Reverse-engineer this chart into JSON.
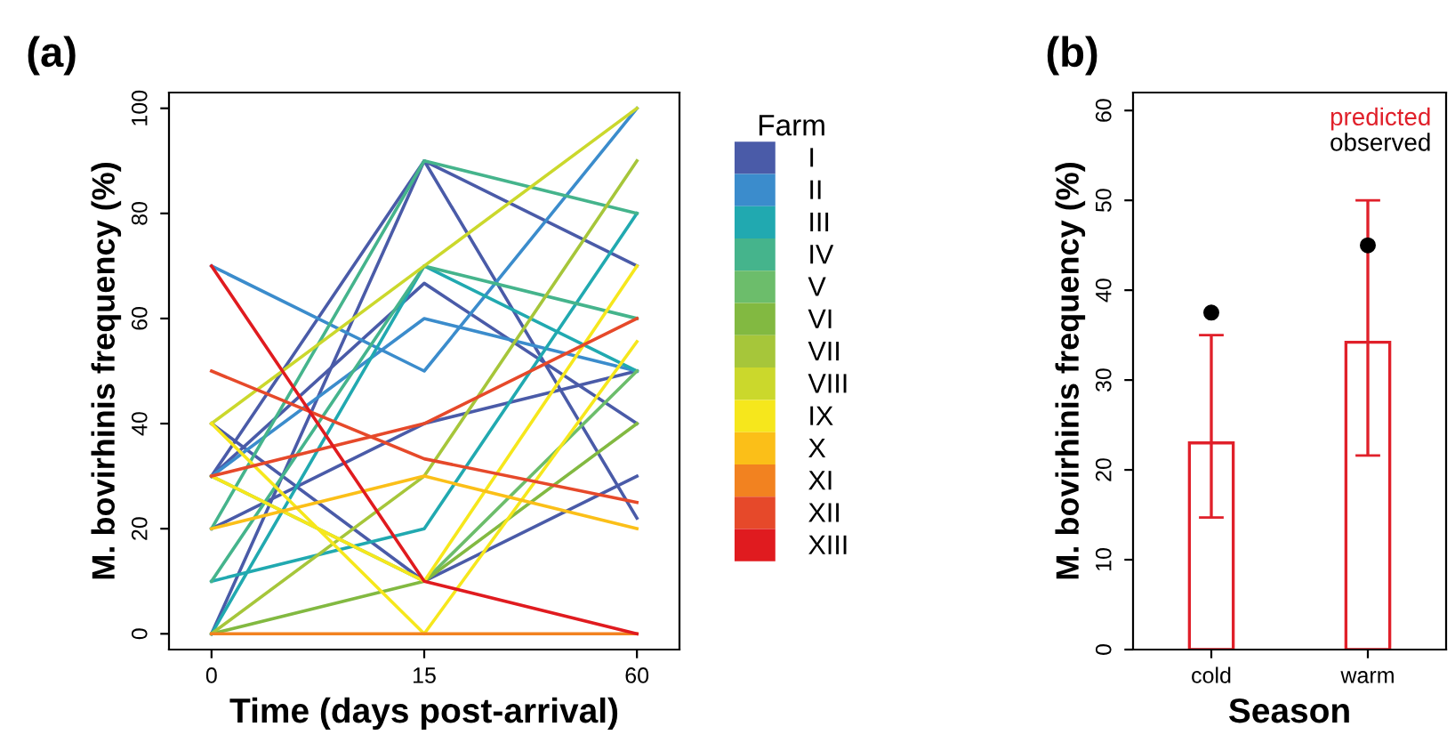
{
  "chart_data": [
    {
      "type": "line",
      "title": "(a)",
      "xlabel": "Time (days post-arrival)",
      "ylabel": "M. bovirhinis frequency (%)",
      "legend_title": "Farm",
      "legend": "right",
      "categories": [
        "0",
        "15",
        "60"
      ],
      "ylim": [
        -3,
        103
      ],
      "yticks": [
        0,
        20,
        40,
        60,
        80,
        100
      ],
      "series": [
        {
          "name": "I",
          "color": "#4a5ba8",
          "values": [
            0,
            90,
            22
          ]
        },
        {
          "color": "#4a5ba8",
          "values": [
            30,
            90,
            70
          ]
        },
        {
          "color": "#4a5ba8",
          "values": [
            30,
            66.7,
            40
          ]
        },
        {
          "color": "#4a5ba8",
          "values": [
            20,
            40,
            50
          ]
        },
        {
          "color": "#4a5ba8",
          "values": [
            40,
            10,
            30
          ]
        },
        {
          "name": "II",
          "color": "#3b8ccc",
          "values": [
            70,
            50,
            100
          ]
        },
        {
          "color": "#3b8ccc",
          "values": [
            30,
            60,
            50
          ]
        },
        {
          "name": "III",
          "color": "#21a9b0",
          "values": [
            10,
            20,
            80
          ]
        },
        {
          "color": "#21a9b0",
          "values": [
            0,
            70,
            50
          ]
        },
        {
          "name": "IV",
          "color": "#45b48c",
          "values": [
            20,
            90,
            80
          ]
        },
        {
          "color": "#45b48c",
          "values": [
            10,
            70,
            60
          ]
        },
        {
          "name": "V",
          "color": "#6cbd6b",
          "values": [
            30,
            10,
            50
          ]
        },
        {
          "name": "VI",
          "color": "#82b941",
          "values": [
            0,
            10,
            40
          ]
        },
        {
          "name": "VII",
          "color": "#a6c63a",
          "values": [
            0,
            30,
            90
          ]
        },
        {
          "name": "VIII",
          "color": "#cbd82c",
          "values": [
            40,
            70,
            100
          ]
        },
        {
          "name": "IX",
          "color": "#f6e71c",
          "values": [
            40,
            0,
            55.6
          ]
        },
        {
          "color": "#f6e71c",
          "values": [
            30,
            10,
            70
          ]
        },
        {
          "name": "X",
          "color": "#fbbf18",
          "values": [
            20,
            30,
            20
          ]
        },
        {
          "name": "XI",
          "color": "#f28220",
          "values": [
            0,
            0,
            0
          ]
        },
        {
          "name": "XII",
          "color": "#e6492a",
          "values": [
            30,
            40,
            60
          ]
        },
        {
          "color": "#e6492a",
          "values": [
            50,
            33.3,
            25
          ]
        },
        {
          "name": "XIII",
          "color": "#e01b1f",
          "values": [
            70,
            10,
            0
          ]
        }
      ]
    },
    {
      "type": "bar",
      "title": "(b)",
      "xlabel": "Season",
      "ylabel": "M. bovirhinis frequency (%)",
      "legend": "top right",
      "categories": [
        "cold",
        "warm"
      ],
      "ylim": [
        0,
        62
      ],
      "yticks": [
        0,
        10,
        20,
        30,
        40,
        50,
        60
      ],
      "series": [
        {
          "name": "predicted",
          "type": "bar",
          "color": "#e0202a",
          "values": [
            23,
            34.2
          ],
          "errors": [
            [
              14.7,
              35
            ],
            [
              21.6,
              50
            ]
          ]
        },
        {
          "name": "observed",
          "type": "scatter",
          "color": "#000000",
          "values": [
            37.5,
            45
          ]
        }
      ]
    }
  ]
}
